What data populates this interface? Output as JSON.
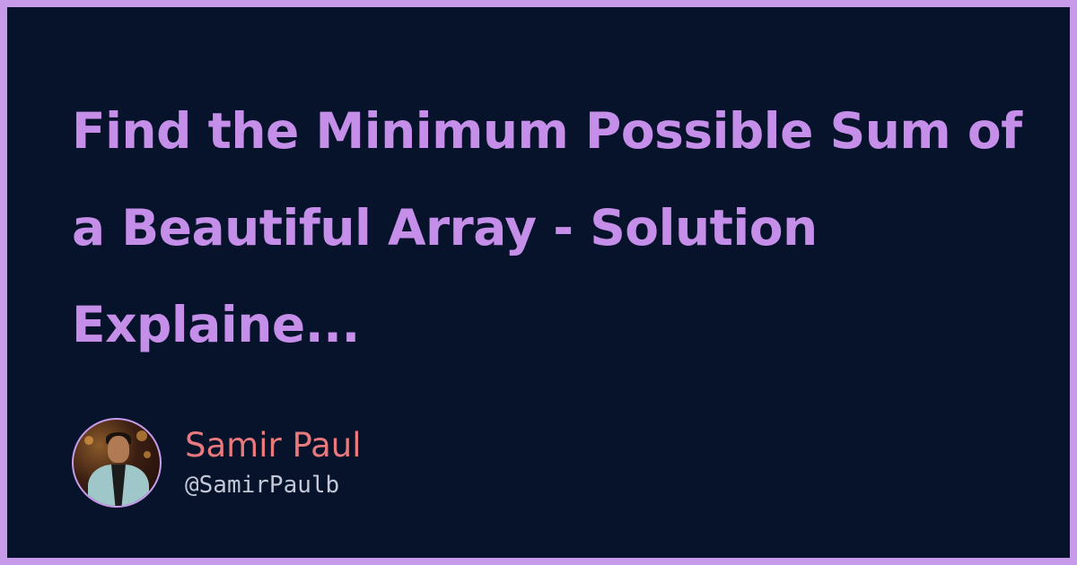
{
  "card": {
    "title": "Find the Minimum Possible Sum of a Beautiful Array - Solution Explaine..."
  },
  "author": {
    "name": "Samir Paul",
    "handle": "@SamirPaulb",
    "avatar_icon": "user-photo-avatar"
  },
  "colors": {
    "border": "#c79bea",
    "background": "#06132b",
    "title": "#c58ee9",
    "name": "#e8797c",
    "handle": "#c3c8d8"
  }
}
